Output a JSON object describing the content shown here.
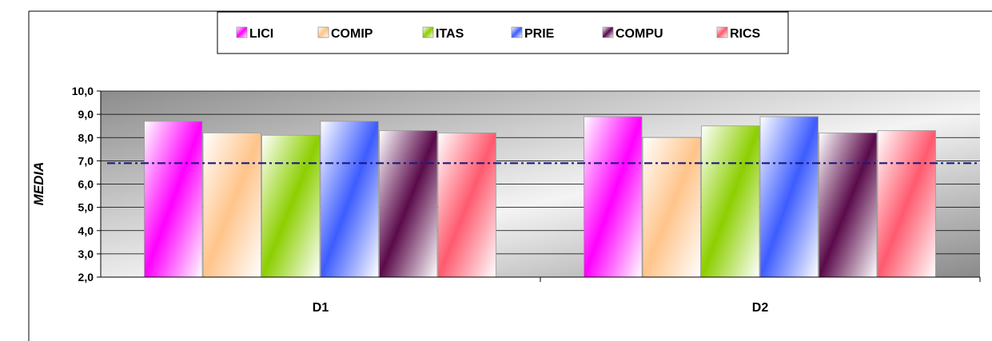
{
  "chart_data": {
    "type": "bar",
    "title": "",
    "xlabel": "",
    "ylabel": "MEDIA",
    "ylim": [
      2.0,
      10.0
    ],
    "yticks": [
      "2,0",
      "3,0",
      "4,0",
      "5,0",
      "6,0",
      "7,0",
      "8,0",
      "9,0",
      "10,0"
    ],
    "categories": [
      "D1",
      "D2"
    ],
    "series": [
      {
        "name": "LICI",
        "color": "#ff00ff",
        "values": [
          8.7,
          8.9
        ]
      },
      {
        "name": "COMIP",
        "color": "#ffc48a",
        "values": [
          8.2,
          8.0
        ]
      },
      {
        "name": "ITAS",
        "color": "#8ccf00",
        "values": [
          8.1,
          8.5
        ]
      },
      {
        "name": "PRIE",
        "color": "#3d5cff",
        "values": [
          8.7,
          8.9
        ]
      },
      {
        "name": "COMPU",
        "color": "#5a0a4a",
        "values": [
          8.3,
          8.2
        ]
      },
      {
        "name": "RICS",
        "color": "#ff5a6e",
        "values": [
          8.2,
          8.3
        ]
      }
    ],
    "reference_line": {
      "value": 6.9,
      "style": "dash-dot",
      "color": "#1a1a7a"
    },
    "grid": true,
    "legend_position": "top"
  }
}
